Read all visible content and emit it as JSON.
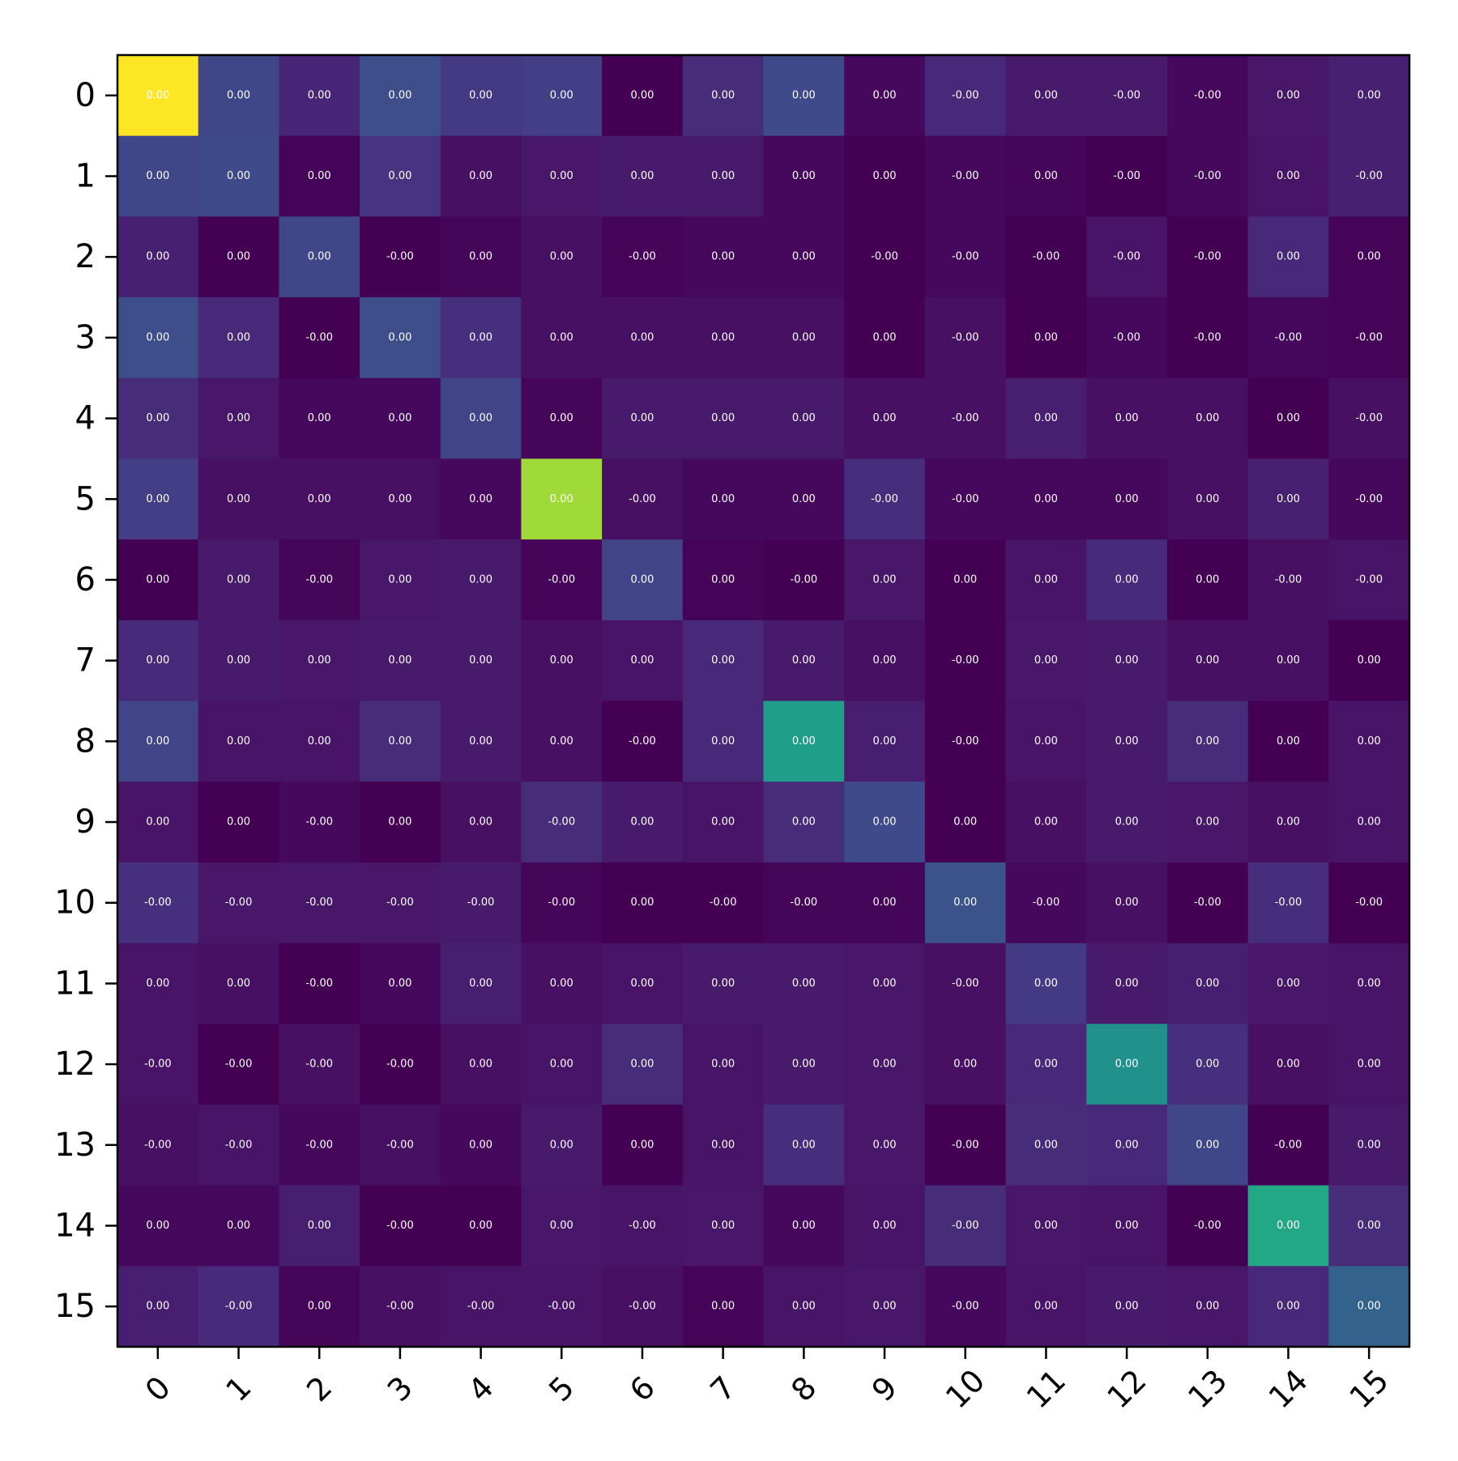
{
  "chart_data": {
    "type": "heatmap",
    "title": "",
    "xlabel": "",
    "ylabel": "",
    "x_tick_labels": [
      "0",
      "1",
      "2",
      "3",
      "4",
      "5",
      "6",
      "7",
      "8",
      "9",
      "10",
      "11",
      "12",
      "13",
      "14",
      "15"
    ],
    "y_tick_labels": [
      "0",
      "1",
      "2",
      "3",
      "4",
      "5",
      "6",
      "7",
      "8",
      "9",
      "10",
      "11",
      "12",
      "13",
      "14",
      "15"
    ],
    "colormap": "viridis",
    "cell_labels": [
      [
        "0.00",
        "0.00",
        "0.00",
        "0.00",
        "0.00",
        "0.00",
        "0.00",
        "0.00",
        "0.00",
        "0.00",
        "-0.00",
        "0.00",
        "-0.00",
        "-0.00",
        "0.00",
        "0.00"
      ],
      [
        "0.00",
        "0.00",
        "0.00",
        "0.00",
        "0.00",
        "0.00",
        "0.00",
        "0.00",
        "0.00",
        "0.00",
        "-0.00",
        "0.00",
        "-0.00",
        "-0.00",
        "0.00",
        "-0.00"
      ],
      [
        "0.00",
        "0.00",
        "0.00",
        "-0.00",
        "0.00",
        "0.00",
        "-0.00",
        "0.00",
        "0.00",
        "-0.00",
        "-0.00",
        "-0.00",
        "-0.00",
        "-0.00",
        "0.00",
        "0.00"
      ],
      [
        "0.00",
        "0.00",
        "-0.00",
        "0.00",
        "0.00",
        "0.00",
        "0.00",
        "0.00",
        "0.00",
        "0.00",
        "-0.00",
        "0.00",
        "-0.00",
        "-0.00",
        "-0.00",
        "-0.00"
      ],
      [
        "0.00",
        "0.00",
        "0.00",
        "0.00",
        "0.00",
        "0.00",
        "0.00",
        "0.00",
        "0.00",
        "0.00",
        "-0.00",
        "0.00",
        "0.00",
        "0.00",
        "0.00",
        "-0.00"
      ],
      [
        "0.00",
        "0.00",
        "0.00",
        "0.00",
        "0.00",
        "0.00",
        "-0.00",
        "0.00",
        "0.00",
        "-0.00",
        "-0.00",
        "0.00",
        "0.00",
        "0.00",
        "0.00",
        "-0.00"
      ],
      [
        "0.00",
        "0.00",
        "-0.00",
        "0.00",
        "0.00",
        "-0.00",
        "0.00",
        "0.00",
        "-0.00",
        "0.00",
        "0.00",
        "0.00",
        "0.00",
        "0.00",
        "-0.00",
        "-0.00"
      ],
      [
        "0.00",
        "0.00",
        "0.00",
        "0.00",
        "0.00",
        "0.00",
        "0.00",
        "0.00",
        "0.00",
        "0.00",
        "-0.00",
        "0.00",
        "0.00",
        "0.00",
        "0.00",
        "0.00"
      ],
      [
        "0.00",
        "0.00",
        "0.00",
        "0.00",
        "0.00",
        "0.00",
        "-0.00",
        "0.00",
        "0.00",
        "0.00",
        "-0.00",
        "0.00",
        "0.00",
        "0.00",
        "0.00",
        "0.00"
      ],
      [
        "0.00",
        "0.00",
        "-0.00",
        "0.00",
        "0.00",
        "-0.00",
        "0.00",
        "0.00",
        "0.00",
        "0.00",
        "0.00",
        "0.00",
        "0.00",
        "0.00",
        "0.00",
        "0.00"
      ],
      [
        "-0.00",
        "-0.00",
        "-0.00",
        "-0.00",
        "-0.00",
        "-0.00",
        "0.00",
        "-0.00",
        "-0.00",
        "0.00",
        "0.00",
        "-0.00",
        "0.00",
        "-0.00",
        "-0.00",
        "-0.00"
      ],
      [
        "0.00",
        "0.00",
        "-0.00",
        "0.00",
        "0.00",
        "0.00",
        "0.00",
        "0.00",
        "0.00",
        "0.00",
        "-0.00",
        "0.00",
        "0.00",
        "0.00",
        "0.00",
        "0.00"
      ],
      [
        "-0.00",
        "-0.00",
        "-0.00",
        "-0.00",
        "0.00",
        "0.00",
        "0.00",
        "0.00",
        "0.00",
        "0.00",
        "0.00",
        "0.00",
        "0.00",
        "0.00",
        "0.00",
        "0.00"
      ],
      [
        "-0.00",
        "-0.00",
        "-0.00",
        "-0.00",
        "0.00",
        "0.00",
        "0.00",
        "0.00",
        "0.00",
        "0.00",
        "-0.00",
        "0.00",
        "0.00",
        "0.00",
        "-0.00",
        "0.00"
      ],
      [
        "0.00",
        "0.00",
        "0.00",
        "-0.00",
        "0.00",
        "0.00",
        "-0.00",
        "0.00",
        "0.00",
        "0.00",
        "-0.00",
        "0.00",
        "0.00",
        "-0.00",
        "0.00",
        "0.00"
      ],
      [
        "0.00",
        "-0.00",
        "0.00",
        "-0.00",
        "-0.00",
        "-0.00",
        "-0.00",
        "0.00",
        "0.00",
        "0.00",
        "-0.00",
        "0.00",
        "0.00",
        "0.00",
        "0.00",
        "0.00"
      ]
    ],
    "cell_colors": [
      [
        "#fde725",
        "#3f4788",
        "#482576",
        "#3d4e8a",
        "#443a83",
        "#433e85",
        "#440154",
        "#472c7a",
        "#3e4a89",
        "#46085c",
        "#482878",
        "#481a6c",
        "#481a6c",
        "#46085c",
        "#481769",
        "#482071"
      ],
      [
        "#3f4788",
        "#3e4a89",
        "#450457",
        "#463480",
        "#471063",
        "#481769",
        "#481a6c",
        "#481a6c",
        "#46085c",
        "#440154",
        "#46085c",
        "#450559",
        "#440154",
        "#46085c",
        "#481467",
        "#482071"
      ],
      [
        "#482071",
        "#440154",
        "#3f4788",
        "#440154",
        "#450559",
        "#471063",
        "#450457",
        "#46085c",
        "#46085c",
        "#440154",
        "#46085c",
        "#440154",
        "#481467",
        "#440154",
        "#482878",
        "#450457"
      ],
      [
        "#3d4e8a",
        "#482878",
        "#440154",
        "#3d4e8a",
        "#46307e",
        "#471063",
        "#471063",
        "#471063",
        "#471063",
        "#440154",
        "#471063",
        "#440154",
        "#46085c",
        "#440154",
        "#46085c",
        "#450457"
      ],
      [
        "#472c7a",
        "#481769",
        "#46085c",
        "#46085c",
        "#414487",
        "#450559",
        "#481a6c",
        "#481a6c",
        "#481a6c",
        "#471063",
        "#471063",
        "#481f70",
        "#471063",
        "#471063",
        "#440154",
        "#471063"
      ],
      [
        "#433e85",
        "#471063",
        "#471063",
        "#471063",
        "#46085c",
        "#a0da39",
        "#471063",
        "#46085c",
        "#46085c",
        "#472e7c",
        "#46085c",
        "#46085c",
        "#46085c",
        "#471063",
        "#482071",
        "#46085c"
      ],
      [
        "#440154",
        "#481a6c",
        "#450559",
        "#481769",
        "#481a6c",
        "#450457",
        "#414487",
        "#450457",
        "#440154",
        "#481769",
        "#440154",
        "#481467",
        "#472a7a",
        "#440154",
        "#471063",
        "#481467"
      ],
      [
        "#472a7a",
        "#481a6c",
        "#481769",
        "#481a6c",
        "#481a6c",
        "#471063",
        "#481467",
        "#482878",
        "#481a6c",
        "#471063",
        "#440154",
        "#481769",
        "#481a6c",
        "#471063",
        "#471063",
        "#440154"
      ],
      [
        "#414487",
        "#481467",
        "#481467",
        "#472c7a",
        "#481a6c",
        "#471063",
        "#440154",
        "#482878",
        "#1f9e89",
        "#481f70",
        "#440154",
        "#481467",
        "#481a6c",
        "#472c7a",
        "#440154",
        "#481467"
      ],
      [
        "#481467",
        "#440154",
        "#46085c",
        "#440154",
        "#471063",
        "#472c7a",
        "#481a6c",
        "#481467",
        "#472c7a",
        "#3e4a89",
        "#440154",
        "#471063",
        "#481a6c",
        "#481769",
        "#471063",
        "#481467"
      ],
      [
        "#46307e",
        "#481769",
        "#481769",
        "#481769",
        "#481a6c",
        "#450559",
        "#440154",
        "#440154",
        "#450559",
        "#450559",
        "#3b528b",
        "#46085c",
        "#471063",
        "#440154",
        "#472e7c",
        "#440154"
      ],
      [
        "#481467",
        "#471063",
        "#440154",
        "#46085c",
        "#481f70",
        "#471063",
        "#481467",
        "#481a6c",
        "#481a6c",
        "#481769",
        "#471063",
        "#443a83",
        "#481a6c",
        "#481f70",
        "#481769",
        "#481467"
      ],
      [
        "#481467",
        "#440154",
        "#471063",
        "#440154",
        "#471063",
        "#481467",
        "#472c7a",
        "#481467",
        "#481a6c",
        "#481769",
        "#471063",
        "#482878",
        "#21918c",
        "#46307e",
        "#471063",
        "#481467"
      ],
      [
        "#471063",
        "#481467",
        "#46085c",
        "#471063",
        "#46085c",
        "#481a6c",
        "#440154",
        "#481467",
        "#472e7c",
        "#481769",
        "#440154",
        "#472c7a",
        "#482878",
        "#3f4788",
        "#440154",
        "#481a6c"
      ],
      [
        "#46085c",
        "#46085c",
        "#481f70",
        "#440154",
        "#440154",
        "#481769",
        "#481467",
        "#481769",
        "#46085c",
        "#481467",
        "#472c7a",
        "#481769",
        "#481467",
        "#440154",
        "#22a884",
        "#472c7a"
      ],
      [
        "#481f70",
        "#472a7a",
        "#450559",
        "#471063",
        "#481467",
        "#481467",
        "#471063",
        "#450457",
        "#481467",
        "#481769",
        "#46085c",
        "#481467",
        "#481a6c",
        "#481769",
        "#482878",
        "#33638d"
      ]
    ]
  }
}
